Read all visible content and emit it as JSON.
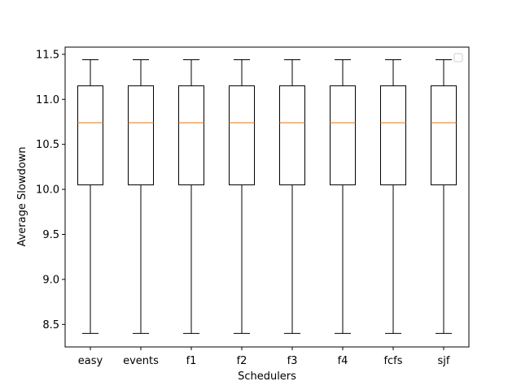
{
  "chart_data": {
    "type": "box",
    "title": "",
    "xlabel": "Schedulers",
    "ylabel": "Average Slowdown",
    "ylim": [
      8.25,
      11.58
    ],
    "yticks": [
      8.5,
      9.0,
      9.5,
      10.0,
      10.5,
      11.0,
      11.5
    ],
    "ytick_labels": [
      "8.5",
      "9.0",
      "9.5",
      "10.0",
      "10.5",
      "11.0",
      "11.5"
    ],
    "grid": false,
    "legend": "top-right (empty)",
    "colors": {
      "box": "#000000",
      "median": "#ff7f0e"
    },
    "categories": [
      "easy",
      "events",
      "f1",
      "f2",
      "f3",
      "f4",
      "fcfs",
      "sjf"
    ],
    "boxes": [
      {
        "category": "easy",
        "whisker_low": 8.4,
        "q1": 10.05,
        "median": 10.74,
        "q3": 11.15,
        "whisker_high": 11.44
      },
      {
        "category": "events",
        "whisker_low": 8.4,
        "q1": 10.05,
        "median": 10.74,
        "q3": 11.15,
        "whisker_high": 11.44
      },
      {
        "category": "f1",
        "whisker_low": 8.4,
        "q1": 10.05,
        "median": 10.74,
        "q3": 11.15,
        "whisker_high": 11.44
      },
      {
        "category": "f2",
        "whisker_low": 8.4,
        "q1": 10.05,
        "median": 10.74,
        "q3": 11.15,
        "whisker_high": 11.44
      },
      {
        "category": "f3",
        "whisker_low": 8.4,
        "q1": 10.05,
        "median": 10.74,
        "q3": 11.15,
        "whisker_high": 11.44
      },
      {
        "category": "f4",
        "whisker_low": 8.4,
        "q1": 10.05,
        "median": 10.74,
        "q3": 11.15,
        "whisker_high": 11.44
      },
      {
        "category": "fcfs",
        "whisker_low": 8.4,
        "q1": 10.05,
        "median": 10.74,
        "q3": 11.15,
        "whisker_high": 11.44
      },
      {
        "category": "sjf",
        "whisker_low": 8.4,
        "q1": 10.05,
        "median": 10.74,
        "q3": 11.15,
        "whisker_high": 11.44
      }
    ]
  }
}
